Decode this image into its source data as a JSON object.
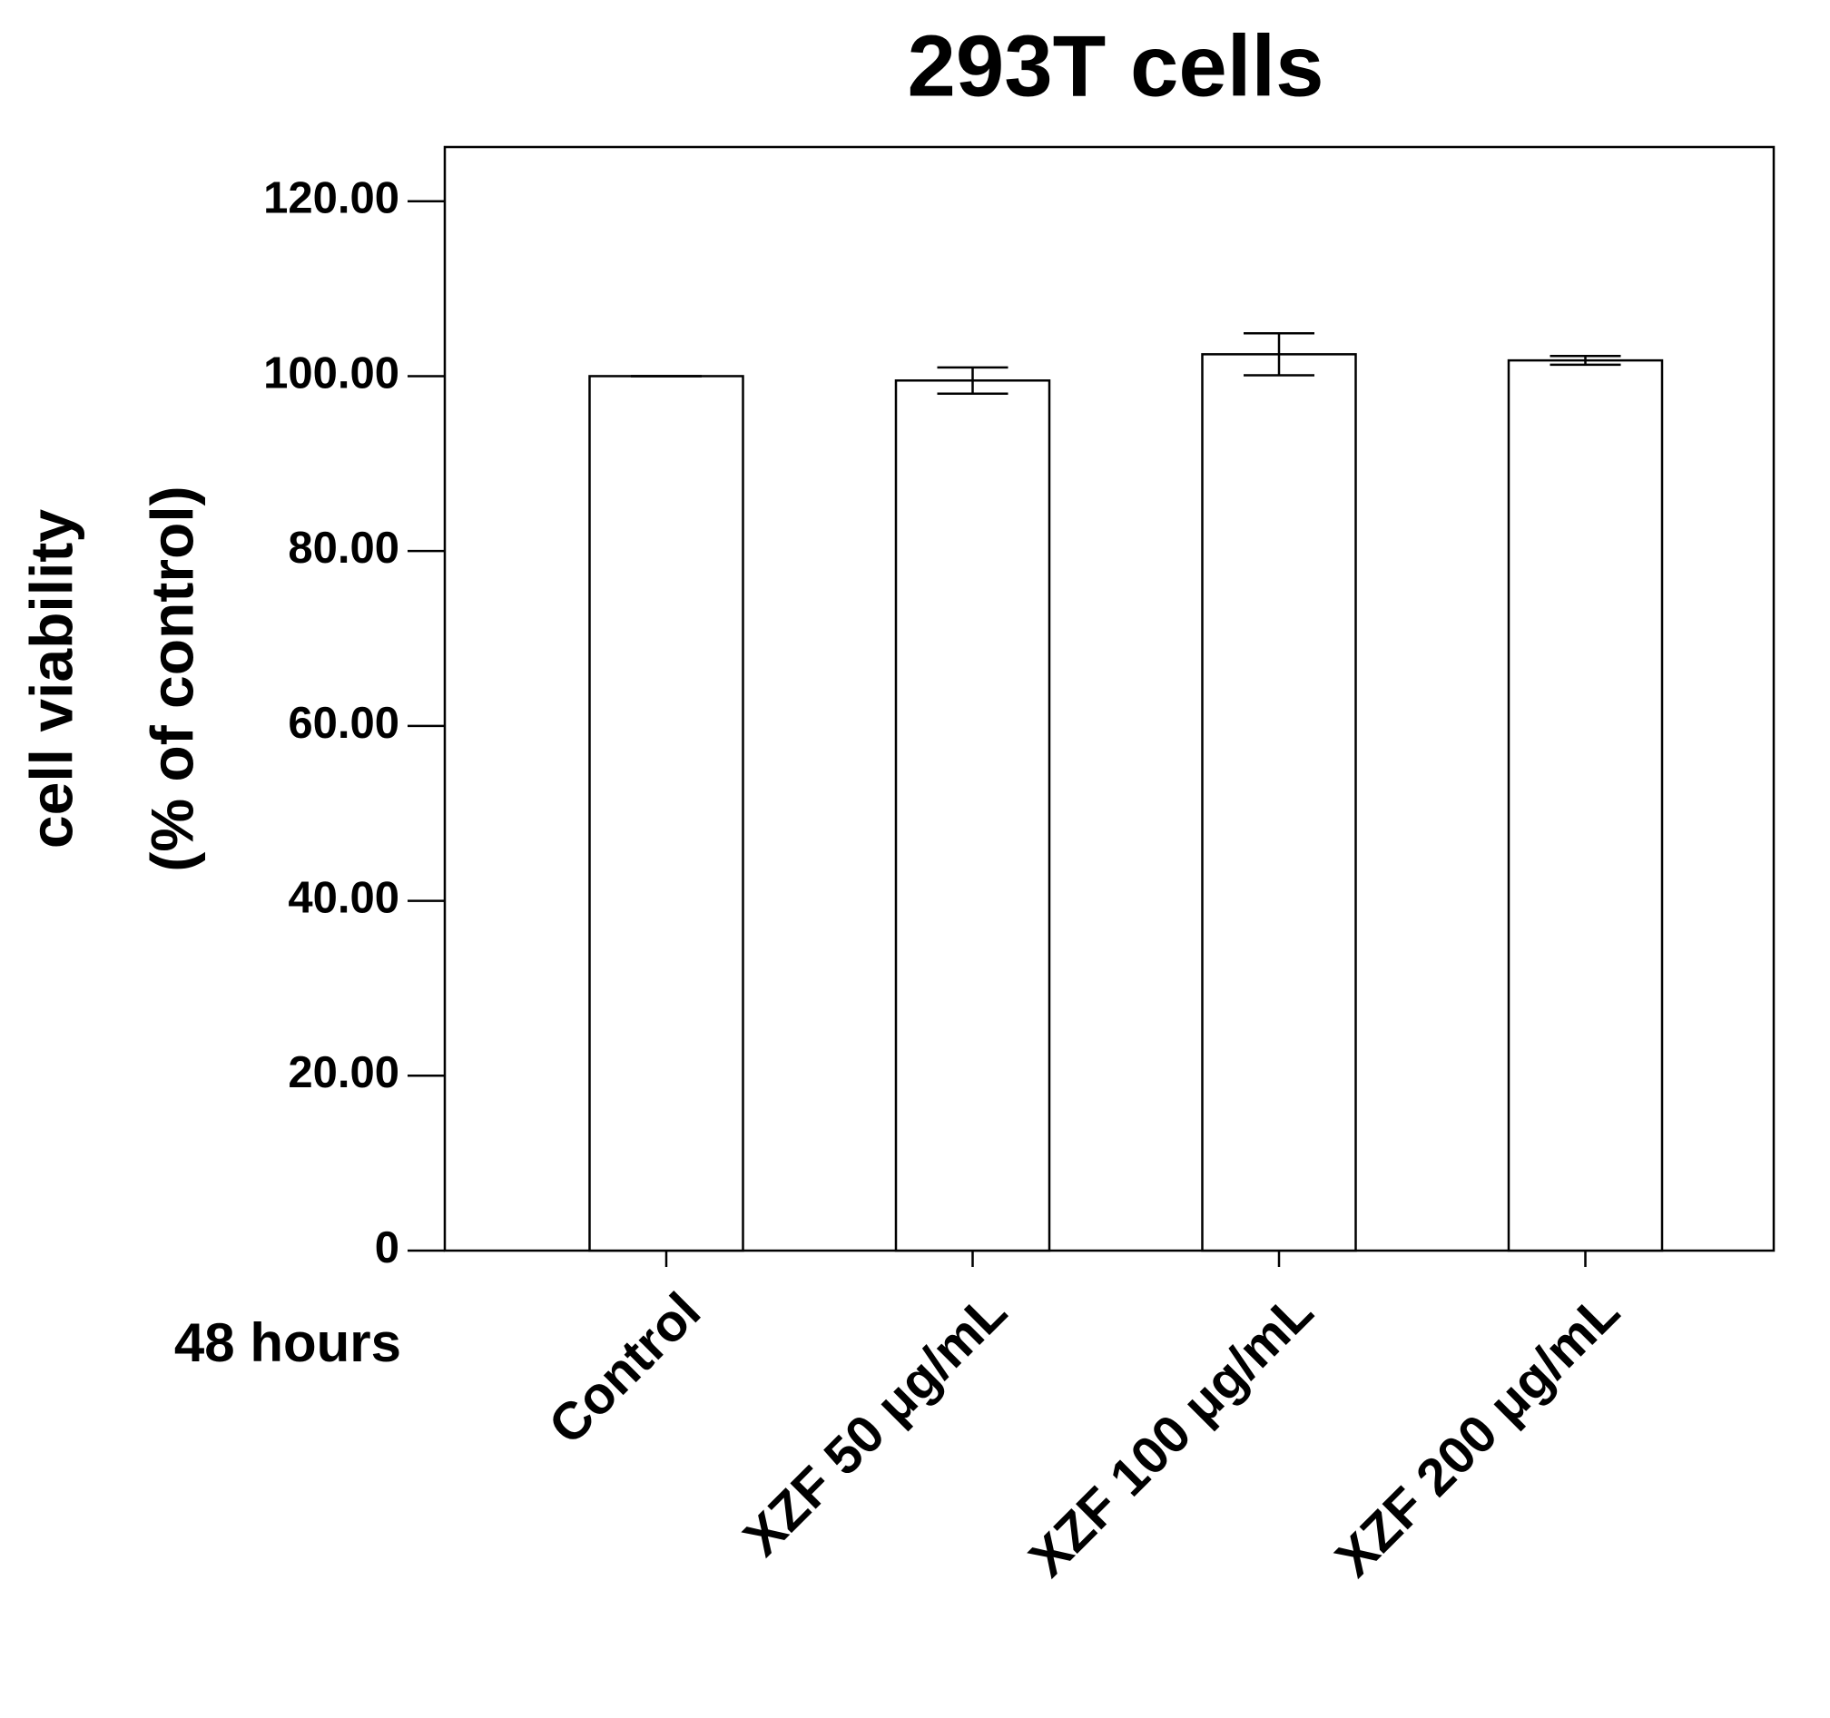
{
  "chart_data": {
    "type": "bar",
    "title": "293T cells",
    "y_label": [
      "cell viability",
      "(% of control)"
    ],
    "x_label": "48 hours",
    "categories": [
      "Control",
      "XZF 50 μg/mL",
      "XZF 100 μg/mL",
      "XZF 200 μg/mL"
    ],
    "values": [
      100,
      99.5,
      102.5,
      101.8
    ],
    "errors": [
      0,
      1.5,
      2.4,
      0.5
    ],
    "color": "#ffffff",
    "ylim": [
      0,
      126.2
    ],
    "yticks": [
      0,
      {
        "value": 20,
        "label": "20.00"
      },
      {
        "value": 40,
        "label": "40.00"
      },
      {
        "value": 60,
        "label": "60.00"
      },
      {
        "value": 80,
        "label": "80.00"
      },
      {
        "value": 100,
        "label": "100.00"
      },
      {
        "value": 120,
        "label": "120.00"
      }
    ],
    "grid": false
  }
}
